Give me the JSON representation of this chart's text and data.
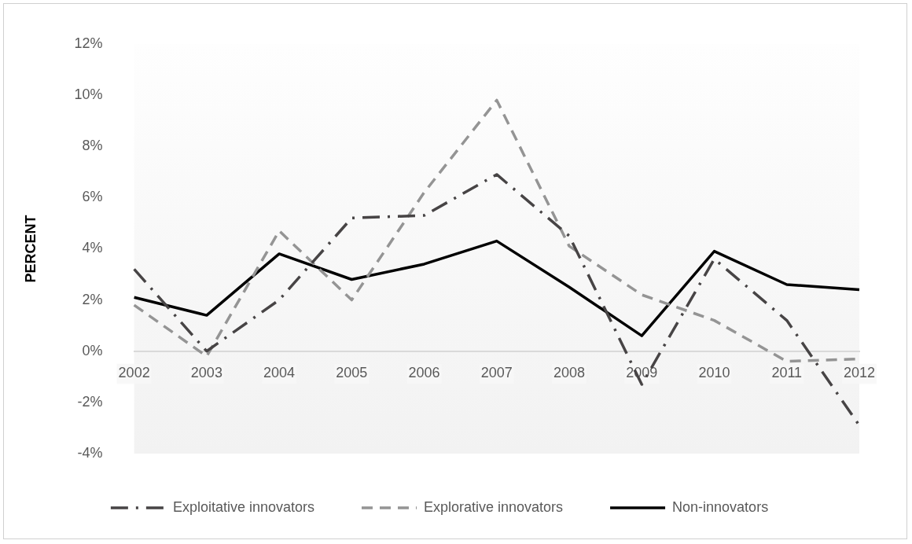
{
  "chart_data": {
    "type": "line",
    "ylabel": "PERCENT",
    "categories": [
      "2002",
      "2003",
      "2004",
      "2005",
      "2006",
      "2007",
      "2008",
      "2009",
      "2010",
      "2011",
      "2012"
    ],
    "series": [
      {
        "name": "Exploitative innovators",
        "color": "#474445",
        "line_style": "dashdot",
        "values": [
          3.2,
          0.0,
          2.0,
          5.2,
          5.3,
          6.9,
          4.5,
          -1.3,
          3.6,
          1.2,
          -2.9
        ]
      },
      {
        "name": "Explorative innovators",
        "color": "#949494",
        "line_style": "dashed",
        "values": [
          1.8,
          -0.2,
          4.7,
          2.0,
          6.2,
          9.8,
          4.1,
          2.2,
          1.2,
          -0.4,
          -0.3
        ]
      },
      {
        "name": "Non-innovators",
        "color": "#000000",
        "line_style": "solid",
        "values": [
          2.1,
          1.4,
          3.8,
          2.8,
          3.4,
          4.3,
          2.5,
          0.6,
          3.9,
          2.6,
          2.4
        ]
      }
    ],
    "ylim": [
      -4,
      12
    ],
    "yticks": [
      {
        "value": -4,
        "label": "-4%"
      },
      {
        "value": -2,
        "label": "-2%"
      },
      {
        "value": 0,
        "label": "0%"
      },
      {
        "value": 2,
        "label": "2%"
      },
      {
        "value": 4,
        "label": "4%"
      },
      {
        "value": 6,
        "label": "6%"
      },
      {
        "value": 8,
        "label": "8%"
      },
      {
        "value": 10,
        "label": "10%"
      },
      {
        "value": 12,
        "label": "12%"
      }
    ],
    "grid": false,
    "legend": "bottom",
    "marker": "none"
  }
}
